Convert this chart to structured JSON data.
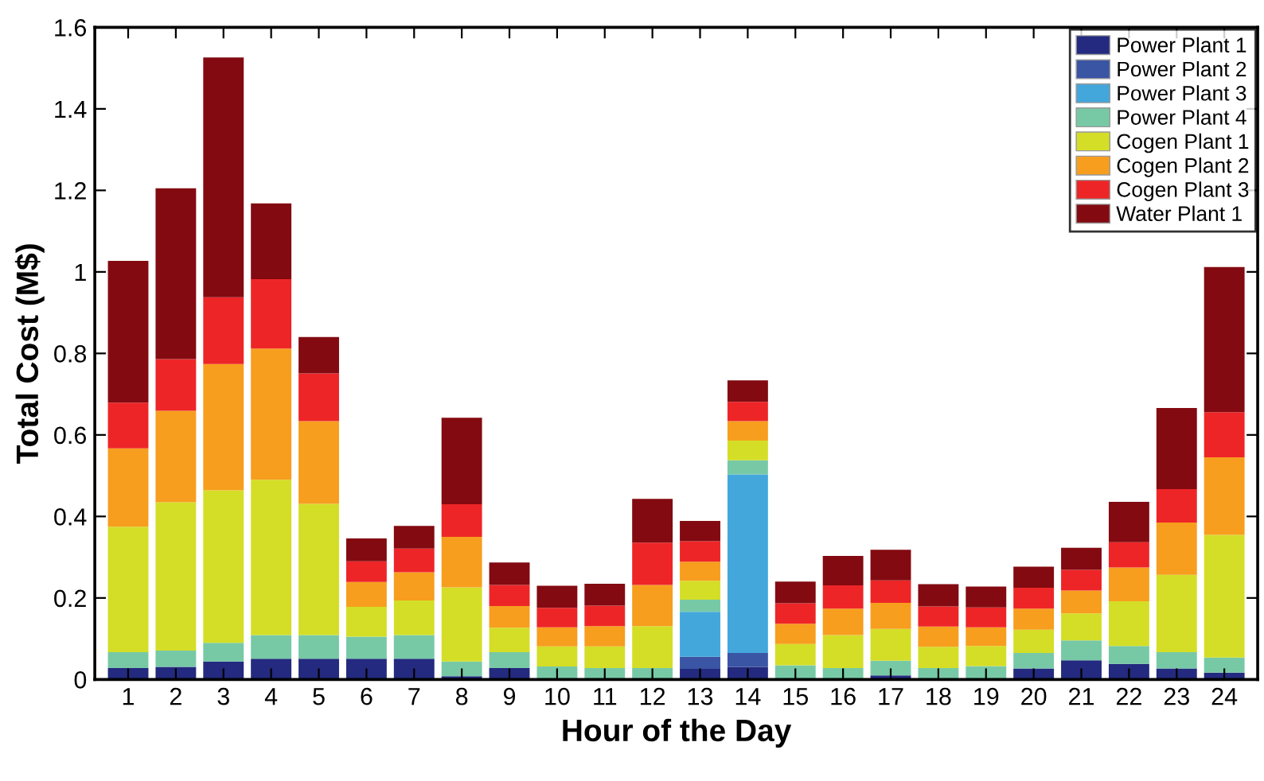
{
  "chart_data": {
    "type": "bar",
    "stacked": true,
    "xlabel": "Hour of the Day",
    "ylabel": "Total Cost (M$)",
    "categories": [
      "1",
      "2",
      "3",
      "4",
      "5",
      "6",
      "7",
      "8",
      "9",
      "10",
      "11",
      "12",
      "13",
      "14",
      "15",
      "16",
      "17",
      "18",
      "19",
      "20",
      "21",
      "22",
      "23",
      "24"
    ],
    "ylim": [
      0,
      1.6
    ],
    "yticks": [
      0,
      0.2,
      0.4,
      0.6,
      0.8,
      1,
      1.2,
      1.4,
      1.6
    ],
    "grid": false,
    "legend": "top right",
    "series": [
      {
        "name": "Power Plant 1",
        "color": "#232a7f",
        "values": [
          0.028,
          0.031,
          0.044,
          0.051,
          0.051,
          0.051,
          0.051,
          0.008,
          0.028,
          0,
          0,
          0,
          0.026,
          0.031,
          0,
          0,
          0.01,
          0,
          0,
          0.027,
          0.047,
          0.038,
          0.027,
          0.017
        ]
      },
      {
        "name": "Power Plant 2",
        "color": "#3a55a4",
        "values": [
          0,
          0,
          0,
          0,
          0,
          0,
          0,
          0,
          0,
          0,
          0,
          0,
          0.03,
          0.034,
          0,
          0,
          0,
          0,
          0,
          0,
          0,
          0,
          0,
          0
        ]
      },
      {
        "name": "Power Plant 3",
        "color": "#43a7dc",
        "values": [
          0,
          0,
          0,
          0,
          0,
          0,
          0,
          0,
          0,
          0,
          0,
          0,
          0.11,
          0.438,
          0,
          0,
          0,
          0,
          0,
          0,
          0,
          0,
          0,
          0
        ]
      },
      {
        "name": "Power Plant 4",
        "color": "#77c9a6",
        "values": [
          0.039,
          0.04,
          0.046,
          0.058,
          0.058,
          0.054,
          0.058,
          0.036,
          0.039,
          0.032,
          0.028,
          0.028,
          0.03,
          0.035,
          0.035,
          0.028,
          0.036,
          0.028,
          0.033,
          0.038,
          0.049,
          0.044,
          0.04,
          0.037
        ]
      },
      {
        "name": "Cogen Plant 1",
        "color": "#d4de27",
        "values": [
          0.308,
          0.364,
          0.374,
          0.381,
          0.322,
          0.073,
          0.085,
          0.182,
          0.06,
          0.049,
          0.053,
          0.103,
          0.046,
          0.048,
          0.052,
          0.081,
          0.078,
          0.052,
          0.049,
          0.057,
          0.066,
          0.11,
          0.19,
          0.301
        ]
      },
      {
        "name": "Cogen Plant 2",
        "color": "#f79e1e",
        "values": [
          0.192,
          0.224,
          0.31,
          0.322,
          0.203,
          0.061,
          0.069,
          0.124,
          0.053,
          0.047,
          0.05,
          0.101,
          0.047,
          0.048,
          0.05,
          0.065,
          0.064,
          0.05,
          0.046,
          0.052,
          0.056,
          0.083,
          0.128,
          0.19
        ]
      },
      {
        "name": "Cogen Plant 3",
        "color": "#ee2527",
        "values": [
          0.112,
          0.127,
          0.164,
          0.17,
          0.117,
          0.051,
          0.058,
          0.08,
          0.052,
          0.048,
          0.05,
          0.104,
          0.05,
          0.047,
          0.05,
          0.057,
          0.055,
          0.049,
          0.049,
          0.051,
          0.051,
          0.062,
          0.082,
          0.111
        ]
      },
      {
        "name": "Water Plant 1",
        "color": "#830a11",
        "values": [
          0.348,
          0.419,
          0.588,
          0.186,
          0.089,
          0.056,
          0.056,
          0.212,
          0.055,
          0.054,
          0.054,
          0.107,
          0.05,
          0.053,
          0.053,
          0.072,
          0.075,
          0.055,
          0.051,
          0.052,
          0.054,
          0.099,
          0.199,
          0.356
        ]
      }
    ]
  }
}
